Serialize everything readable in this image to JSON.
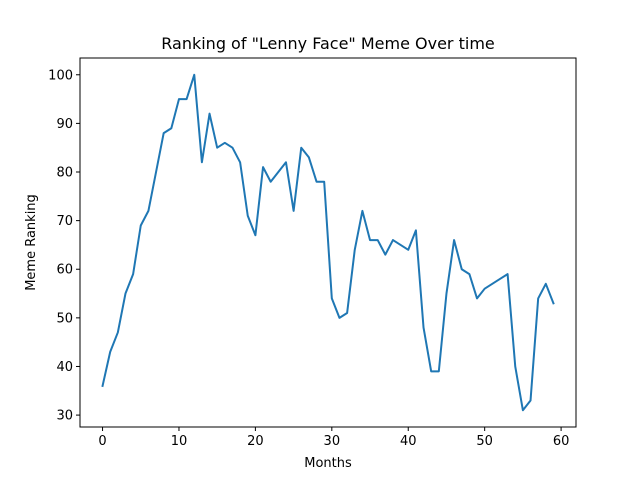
{
  "chart_data": {
    "type": "line",
    "title": "Ranking of \"Lenny Face\" Meme Over time",
    "xlabel": "Months",
    "ylabel": "Meme Ranking",
    "xlim": [
      -2.95,
      61.95
    ],
    "ylim": [
      27.55,
      103.45
    ],
    "xticks": [
      0,
      10,
      20,
      30,
      40,
      50,
      60
    ],
    "yticks": [
      30,
      40,
      50,
      60,
      70,
      80,
      90,
      100
    ],
    "grid": false,
    "line_color": "#1f77b4",
    "x": [
      0,
      1,
      2,
      3,
      4,
      5,
      6,
      7,
      8,
      9,
      10,
      11,
      12,
      13,
      14,
      15,
      16,
      17,
      18,
      19,
      20,
      21,
      22,
      23,
      24,
      25,
      26,
      27,
      28,
      29,
      30,
      31,
      32,
      33,
      34,
      35,
      36,
      37,
      38,
      39,
      40,
      41,
      42,
      43,
      44,
      45,
      46,
      47,
      48,
      49,
      50,
      51,
      52,
      53,
      54,
      55,
      56,
      57,
      58,
      59
    ],
    "series": [
      {
        "values": [
          36,
          43,
          47,
          55,
          59,
          69,
          72,
          80,
          88,
          89,
          95,
          95,
          100,
          82,
          92,
          85,
          86,
          85,
          82,
          71,
          67,
          81,
          78,
          80,
          82,
          72,
          85,
          83,
          78,
          78,
          54,
          50,
          51,
          64,
          72,
          66,
          66,
          63,
          66,
          65,
          64,
          68,
          48,
          39,
          39,
          55,
          66,
          60,
          59,
          54,
          56,
          57,
          58,
          59,
          40,
          31,
          33,
          54,
          57,
          53
        ]
      }
    ]
  }
}
